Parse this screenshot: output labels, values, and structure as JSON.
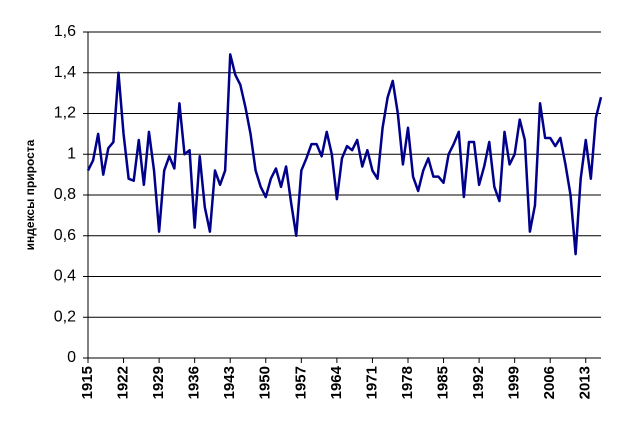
{
  "chart_data": {
    "type": "line",
    "y_label": "индексы прироста",
    "x": [
      1915,
      1916,
      1917,
      1918,
      1919,
      1920,
      1921,
      1922,
      1923,
      1924,
      1925,
      1926,
      1927,
      1928,
      1929,
      1930,
      1931,
      1932,
      1933,
      1934,
      1935,
      1936,
      1937,
      1938,
      1939,
      1940,
      1941,
      1942,
      1943,
      1944,
      1945,
      1946,
      1947,
      1948,
      1949,
      1950,
      1951,
      1952,
      1953,
      1954,
      1955,
      1956,
      1957,
      1958,
      1959,
      1960,
      1961,
      1962,
      1963,
      1964,
      1965,
      1966,
      1967,
      1968,
      1969,
      1970,
      1971,
      1972,
      1973,
      1974,
      1975,
      1976,
      1977,
      1978,
      1979,
      1980,
      1981,
      1982,
      1983,
      1984,
      1985,
      1986,
      1987,
      1988,
      1989,
      1990,
      1991,
      1992,
      1993,
      1994,
      1995,
      1996,
      1997,
      1998,
      1999,
      2000,
      2001,
      2002,
      2003,
      2004,
      2005,
      2006,
      2007,
      2008,
      2009,
      2010,
      2011,
      2012,
      2013,
      2014,
      2015,
      2016
    ],
    "series": [
      {
        "color": "#00008b",
        "values": [
          0.92,
          0.97,
          1.1,
          0.9,
          1.03,
          1.06,
          1.4,
          1.1,
          0.88,
          0.87,
          1.07,
          0.85,
          1.11,
          0.92,
          0.62,
          0.92,
          0.99,
          0.93,
          1.25,
          1.0,
          1.02,
          0.64,
          0.99,
          0.74,
          0.62,
          0.92,
          0.85,
          0.92,
          1.49,
          1.39,
          1.34,
          1.23,
          1.1,
          0.92,
          0.84,
          0.79,
          0.88,
          0.93,
          0.84,
          0.94,
          0.76,
          0.6,
          0.92,
          0.98,
          1.05,
          1.05,
          0.99,
          1.11,
          1.0,
          0.78,
          0.98,
          1.04,
          1.02,
          1.07,
          0.94,
          1.02,
          0.92,
          0.88,
          1.13,
          1.28,
          1.36,
          1.2,
          0.95,
          1.13,
          0.89,
          0.82,
          0.92,
          0.98,
          0.89,
          0.89,
          0.86,
          1.0,
          1.05,
          1.11,
          0.79,
          1.06,
          1.06,
          0.85,
          0.94,
          1.06,
          0.84,
          0.77,
          1.11,
          0.95,
          1.0,
          1.17,
          1.07,
          0.62,
          0.75,
          1.25,
          1.08,
          1.08,
          1.04,
          1.08,
          0.95,
          0.8,
          0.51,
          0.88,
          1.07,
          0.88,
          1.18,
          1.28
        ]
      }
    ],
    "xlim": [
      1915,
      2016
    ],
    "xticks": [
      1915,
      1922,
      1929,
      1936,
      1943,
      1950,
      1957,
      1964,
      1971,
      1978,
      1985,
      1992,
      1999,
      2006,
      2013
    ],
    "ylim": [
      0,
      1.6
    ],
    "yticks": [
      0,
      {
        "value": 0.2,
        "label": "0,2"
      },
      {
        "value": 0.4,
        "label": "0,4"
      },
      {
        "value": 0.6,
        "label": "0,6"
      },
      {
        "value": 0.8,
        "label": "0,8"
      },
      1,
      {
        "value": 1.2,
        "label": "1,2"
      },
      {
        "value": 1.4,
        "label": "1,4"
      },
      {
        "value": 1.6,
        "label": "1,6"
      }
    ],
    "grid": true
  }
}
